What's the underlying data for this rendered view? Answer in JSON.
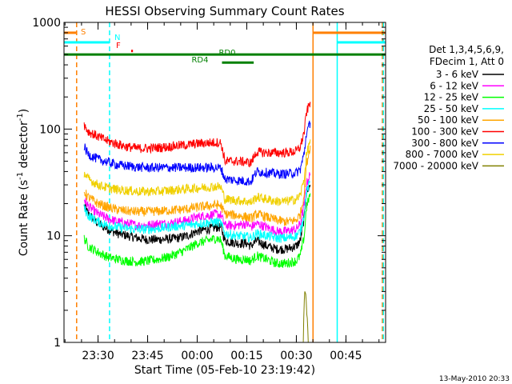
{
  "chart_data": {
    "type": "line",
    "title": "HESSI Observing Summary Count Rates",
    "xlabel": "Start Time (05-Feb-10 23:19:42)",
    "ylabel_main": "Count Rate (s",
    "ylabel_sup1": "-1",
    "ylabel_mid": " detector",
    "ylabel_sup2": "-1",
    "ylabel_end": ")",
    "xlim": [
      23.3283,
      24.95
    ],
    "ylim": [
      1,
      1000
    ],
    "yscale": "log",
    "x_ticks": [
      {
        "value": 23.5,
        "label": "23:30"
      },
      {
        "value": 23.75,
        "label": "23:45"
      },
      {
        "value": 24.0,
        "label": "00:00"
      },
      {
        "value": 24.25,
        "label": "00:15"
      },
      {
        "value": 24.5,
        "label": "00:30"
      },
      {
        "value": 24.75,
        "label": "00:45"
      }
    ],
    "y_ticks": [
      {
        "value": 1,
        "label": "1"
      },
      {
        "value": 10,
        "label": "10"
      },
      {
        "value": 100,
        "label": "100"
      },
      {
        "value": 1000,
        "label": "1000"
      }
    ],
    "legend_header": [
      "Det 1,3,4,5,6,9,",
      "FDecim 1, Att 0"
    ],
    "legend_placement": "right",
    "series": [
      {
        "name": "3 - 6 keV",
        "color": "#000000",
        "x": [
          23.43,
          23.45,
          23.5,
          23.55,
          23.6,
          23.65,
          23.7,
          23.75,
          23.8,
          23.85,
          23.9,
          23.95,
          24.0,
          24.05,
          24.1,
          24.12,
          24.14,
          24.2,
          24.25,
          24.27,
          24.3,
          24.35,
          24.4,
          24.45,
          24.5,
          24.52,
          24.54,
          24.55,
          24.57
        ],
        "y": [
          19,
          16,
          13,
          11.5,
          10.5,
          10,
          9.5,
          9.2,
          9.2,
          9.3,
          9.5,
          10,
          11,
          11.5,
          12,
          12,
          9,
          8.5,
          8.5,
          8,
          9,
          8,
          7.5,
          7.5,
          8,
          9,
          15,
          25,
          30
        ]
      },
      {
        "name": "6 - 12 keV",
        "color": "#ff00ff",
        "x": [
          23.43,
          23.45,
          23.5,
          23.55,
          23.6,
          23.65,
          23.7,
          23.75,
          23.8,
          23.85,
          23.9,
          23.95,
          24.0,
          24.05,
          24.1,
          24.12,
          24.14,
          24.2,
          24.25,
          24.27,
          24.3,
          24.35,
          24.4,
          24.45,
          24.5,
          24.52,
          24.54,
          24.55,
          24.57
        ],
        "y": [
          22,
          19,
          16,
          14.5,
          13.5,
          13,
          12.5,
          12.5,
          13,
          13,
          13.5,
          14,
          15,
          15.5,
          16,
          15.5,
          12.5,
          12.5,
          13,
          12,
          13,
          12,
          11,
          11,
          11.5,
          13,
          20,
          30,
          38
        ]
      },
      {
        "name": "12 - 25 keV",
        "color": "#00ff00",
        "x": [
          23.43,
          23.45,
          23.5,
          23.55,
          23.6,
          23.65,
          23.7,
          23.75,
          23.8,
          23.85,
          23.9,
          23.95,
          24.0,
          24.05,
          24.1,
          24.12,
          24.14,
          24.2,
          24.25,
          24.27,
          24.3,
          24.35,
          24.4,
          24.45,
          24.5,
          24.52,
          24.54,
          24.55,
          24.57
        ],
        "y": [
          9.5,
          8,
          7,
          6.3,
          6,
          5.8,
          5.7,
          5.8,
          6,
          6.3,
          6.8,
          7.5,
          8.5,
          9,
          9.5,
          9,
          6.5,
          6,
          6,
          5.8,
          6.5,
          6,
          5.5,
          5.5,
          5.8,
          6.5,
          10,
          18,
          25
        ]
      },
      {
        "name": "25 - 50 keV",
        "color": "#00ffff",
        "x": [
          23.43,
          23.45,
          23.5,
          23.55,
          23.6,
          23.65,
          23.7,
          23.75,
          23.8,
          23.85,
          23.9,
          23.95,
          24.0,
          24.05,
          24.1,
          24.12,
          24.14,
          24.2,
          24.25,
          24.27,
          24.3,
          24.35,
          24.4,
          24.45,
          24.5,
          24.52,
          24.54,
          24.55,
          24.57
        ],
        "y": [
          18,
          15.5,
          13.5,
          12.5,
          12,
          11.7,
          11.5,
          11.5,
          11.7,
          12,
          12.3,
          12.5,
          13,
          13.2,
          13.5,
          13,
          10.5,
          10,
          9.8,
          9.5,
          10.5,
          10,
          9.5,
          9.5,
          10,
          11,
          16,
          25,
          32
        ]
      },
      {
        "name": "50 - 100 keV",
        "color": "#ffa500",
        "x": [
          23.43,
          23.45,
          23.5,
          23.55,
          23.6,
          23.65,
          23.7,
          23.75,
          23.8,
          23.85,
          23.9,
          23.95,
          24.0,
          24.05,
          24.1,
          24.12,
          24.14,
          24.2,
          24.25,
          24.27,
          24.3,
          24.35,
          24.4,
          24.45,
          24.5,
          24.52,
          24.54,
          24.55,
          24.57
        ],
        "y": [
          26,
          23,
          20,
          18.5,
          17.5,
          17,
          16.8,
          16.8,
          17,
          17.2,
          17.5,
          17.8,
          18.5,
          19,
          19.5,
          19,
          16,
          15.5,
          15,
          14.5,
          16,
          15,
          14,
          13.5,
          14,
          16,
          25,
          45,
          70
        ]
      },
      {
        "name": "100 - 300 keV",
        "color": "#ff0000",
        "x": [
          23.43,
          23.45,
          23.5,
          23.55,
          23.6,
          23.65,
          23.7,
          23.75,
          23.8,
          23.85,
          23.9,
          23.95,
          24.0,
          24.05,
          24.1,
          24.12,
          24.14,
          24.2,
          24.25,
          24.27,
          24.3,
          24.35,
          24.4,
          24.45,
          24.5,
          24.52,
          24.54,
          24.55,
          24.57
        ],
        "y": [
          110,
          95,
          85,
          77,
          72,
          68,
          66,
          66,
          67,
          68,
          70,
          71,
          73,
          74,
          75,
          74,
          50,
          50,
          49,
          48,
          61,
          60,
          60,
          60,
          62,
          68,
          95,
          140,
          180
        ]
      },
      {
        "name": "300 - 800 keV",
        "color": "#0000ff",
        "x": [
          23.43,
          23.45,
          23.5,
          23.55,
          23.6,
          23.65,
          23.7,
          23.75,
          23.8,
          23.85,
          23.9,
          23.95,
          24.0,
          24.05,
          24.1,
          24.12,
          24.14,
          24.2,
          24.25,
          24.27,
          24.3,
          24.35,
          24.4,
          24.45,
          24.5,
          24.52,
          24.54,
          24.55,
          24.57
        ],
        "y": [
          68,
          58,
          52,
          49,
          46,
          45,
          44,
          43.5,
          43.5,
          43.5,
          43.5,
          43.5,
          43.5,
          43.5,
          43.5,
          43,
          34,
          33,
          32.5,
          32,
          40,
          39,
          38,
          38,
          39,
          42,
          60,
          90,
          115
        ]
      },
      {
        "name": "800 - 7000 keV",
        "color": "#f0d000",
        "x": [
          23.43,
          23.45,
          23.5,
          23.55,
          23.6,
          23.65,
          23.7,
          23.75,
          23.8,
          23.85,
          23.9,
          23.95,
          24.0,
          24.05,
          24.1,
          24.12,
          24.14,
          24.2,
          24.25,
          24.27,
          24.3,
          24.35,
          24.4,
          24.45,
          24.5,
          24.52,
          24.54,
          24.55,
          24.57
        ],
        "y": [
          39,
          34,
          30,
          28,
          27,
          26.5,
          26,
          26,
          26,
          26.5,
          27,
          27.5,
          28,
          28.5,
          29,
          28.5,
          22,
          21.5,
          21,
          20.5,
          23,
          22,
          21,
          21,
          22,
          24,
          35,
          55,
          80
        ]
      },
      {
        "name": "7000 - 20000 keV",
        "color": "#808000",
        "x": [
          24.535,
          24.54,
          24.545,
          24.55,
          24.555,
          24.56
        ],
        "y": [
          1,
          2.5,
          3,
          2.2,
          1.6,
          1
        ]
      }
    ],
    "bar_annotations": [
      {
        "label": "S",
        "color": "#ff8000",
        "y": 800,
        "segments": [
          [
            23.3283,
            23.392
          ],
          [
            24.584,
            24.95
          ]
        ]
      },
      {
        "label": "N",
        "color": "#00ffff",
        "y": 650,
        "segments": [
          [
            23.3283,
            23.558
          ],
          [
            24.706,
            24.95
          ]
        ]
      },
      {
        "label": "F",
        "color": "#ff0000",
        "y": 540,
        "segments": [
          [
            23.667,
            23.676
          ]
        ]
      },
      {
        "label": "RD0",
        "color": "#008000",
        "y": 500,
        "segments": [
          [
            23.3283,
            24.95
          ]
        ]
      },
      {
        "label": "RD4",
        "color": "#008000",
        "y": 420,
        "segments": [
          [
            24.125,
            24.285
          ]
        ]
      }
    ],
    "vertical_markers": [
      {
        "x": 23.392,
        "color": "#ff8000",
        "dash": true
      },
      {
        "x": 23.558,
        "color": "#00ffff",
        "dash": true
      },
      {
        "x": 24.584,
        "color": "#ff8000",
        "dash": false
      },
      {
        "x": 24.706,
        "color": "#00ffff",
        "dash": false
      },
      {
        "x": 24.934,
        "color": "#ff8000",
        "dash": true
      },
      {
        "x": 24.939,
        "color": "#00ffff",
        "dash": true
      }
    ],
    "timestamp": "13-May-2010 20:33"
  }
}
